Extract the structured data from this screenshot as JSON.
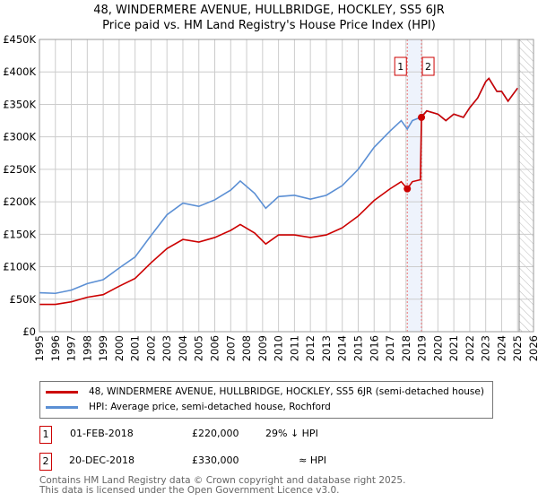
{
  "title": "48, WINDERMERE AVENUE, HULLBRIDGE, HOCKLEY, SS5 6JR",
  "subtitle": "Price paid vs. HM Land Registry's House Price Index (HPI)",
  "chart_data": {
    "type": "line",
    "xlim": [
      1995,
      2026
    ],
    "ylim": [
      0,
      450000
    ],
    "yticks": [
      {
        "v": 0,
        "label": "£0"
      },
      {
        "v": 50000,
        "label": "£50K"
      },
      {
        "v": 100000,
        "label": "£100K"
      },
      {
        "v": 150000,
        "label": "£150K"
      },
      {
        "v": 200000,
        "label": "£200K"
      },
      {
        "v": 250000,
        "label": "£250K"
      },
      {
        "v": 300000,
        "label": "£300K"
      },
      {
        "v": 350000,
        "label": "£350K"
      },
      {
        "v": 400000,
        "label": "£400K"
      },
      {
        "v": 450000,
        "label": "£450K"
      }
    ],
    "xticks": [
      "1995",
      "1996",
      "1997",
      "1998",
      "1999",
      "2000",
      "2001",
      "2002",
      "2003",
      "2004",
      "2005",
      "2006",
      "2007",
      "2008",
      "2009",
      "2010",
      "2011",
      "2012",
      "2013",
      "2014",
      "2015",
      "2016",
      "2017",
      "2018",
      "2019",
      "2020",
      "2021",
      "2022",
      "2023",
      "2024",
      "2025",
      "2026"
    ],
    "series": [
      {
        "name": "48, WINDERMERE AVENUE, HULLBRIDGE, HOCKLEY, SS5 6JR (semi-detached house)",
        "color": "#cc0000",
        "x": [
          1995,
          1996,
          1997,
          1998,
          1999,
          2000,
          2001,
          2002,
          2003,
          2004,
          2005,
          2006,
          2007,
          2007.6,
          2008.5,
          2009.2,
          2010,
          2011,
          2012,
          2013,
          2014,
          2015,
          2016,
          2017,
          2017.7,
          2018.08,
          2018.4,
          2018.9,
          2018.97,
          2019.3,
          2020,
          2020.5,
          2021,
          2021.6,
          2022,
          2022.5,
          2023,
          2023.2,
          2023.7,
          2024,
          2024.4,
          2025
        ],
        "y": [
          42000,
          42000,
          46000,
          53000,
          57000,
          70000,
          82000,
          106000,
          128000,
          142000,
          138000,
          145000,
          156000,
          165000,
          152000,
          135000,
          149000,
          149000,
          145000,
          149000,
          160000,
          178000,
          202000,
          220000,
          231000,
          220000,
          231000,
          234000,
          330000,
          340000,
          335000,
          325000,
          335000,
          330000,
          345000,
          360000,
          385000,
          390000,
          370000,
          370000,
          355000,
          375000
        ]
      },
      {
        "name": "HPI: Average price, semi-detached house, Rochford",
        "color": "#5b8fd4",
        "x": [
          1995,
          1996,
          1997,
          1998,
          1999,
          2000,
          2001,
          2002,
          2003,
          2004,
          2005,
          2006,
          2007,
          2007.6,
          2008.5,
          2009.2,
          2010,
          2011,
          2012,
          2013,
          2014,
          2015,
          2016,
          2017,
          2017.7,
          2018.08,
          2018.4,
          2018.9,
          2019.3,
          2020,
          2020.5,
          2021,
          2021.6,
          2022,
          2022.5,
          2023,
          2023.2,
          2023.7,
          2024,
          2024.4,
          2025
        ],
        "y": [
          60000,
          59000,
          64000,
          74000,
          80000,
          98000,
          115000,
          148000,
          180000,
          198000,
          193000,
          203000,
          218000,
          232000,
          213000,
          190000,
          208000,
          210000,
          204000,
          210000,
          225000,
          250000,
          284000,
          309000,
          325000,
          312000,
          325000,
          330000,
          340000,
          335000,
          325000,
          335000,
          330000,
          345000,
          360000,
          385000,
          390000,
          370000,
          370000,
          355000,
          375000
        ]
      }
    ],
    "sales": [
      {
        "x": 2018.08,
        "y": 220000,
        "label": "1"
      },
      {
        "x": 2018.97,
        "y": 330000,
        "label": "2"
      }
    ],
    "forecast_hatch_from": 2025.1,
    "grid": true
  },
  "legend": {
    "items": [
      "48, WINDERMERE AVENUE, HULLBRIDGE, HOCKLEY, SS5 6JR (semi-detached house)",
      "HPI: Average price, semi-detached house, Rochford"
    ]
  },
  "sales_table": [
    {
      "num": "1",
      "date": "01-FEB-2018",
      "price": "£220,000",
      "rel": "29% ↓ HPI"
    },
    {
      "num": "2",
      "date": "20-DEC-2018",
      "price": "£330,000",
      "rel": "≈ HPI"
    }
  ],
  "footer": [
    "Contains HM Land Registry data © Crown copyright and database right 2025.",
    "This data is licensed under the Open Government Licence v3.0."
  ]
}
